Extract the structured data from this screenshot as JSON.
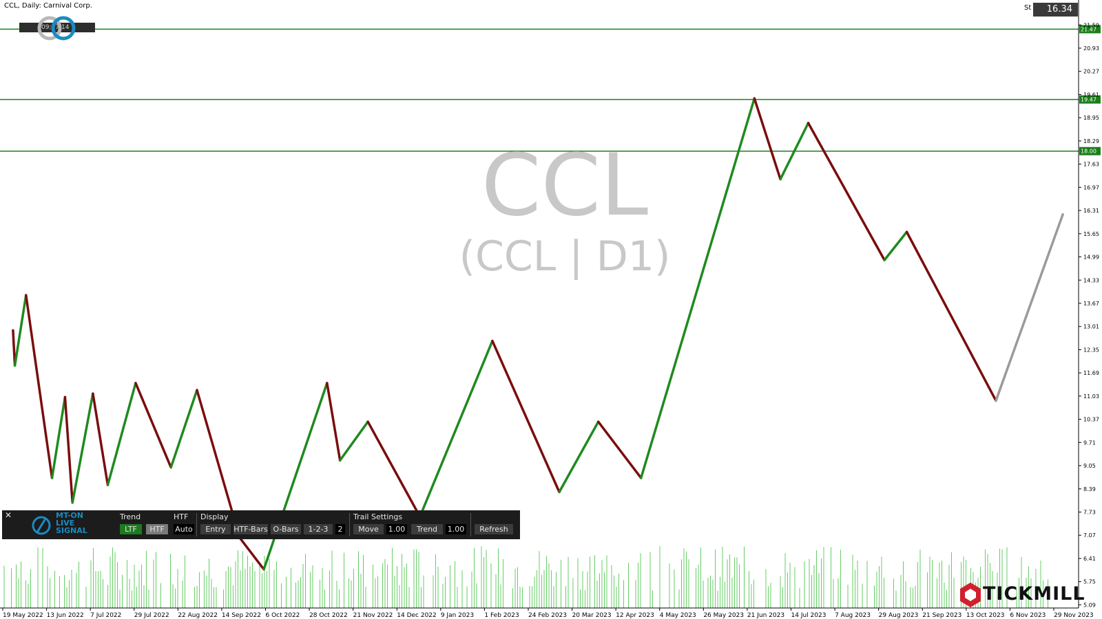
{
  "header": {
    "symbol_line": "CCL, Daily:  Carnival Corp."
  },
  "price_box": {
    "label": "St",
    "value": "16.34"
  },
  "timer": {
    "value": "09:17:14"
  },
  "watermark": {
    "ticker": "CCL",
    "sub": "(CCL | D1)"
  },
  "brand": {
    "name": "TICKMILL",
    "accent": "#d0202e"
  },
  "colors": {
    "up_leg": "#1f8a1f",
    "down_leg": "#7a0d0d",
    "current_leg": "#9a9a9a",
    "level": "#1a7f1a",
    "volume": "#66cc66"
  },
  "panel": {
    "logo": [
      "MT-ON",
      "LIVE",
      "SIGNAL"
    ],
    "close": "✕",
    "trend": {
      "title": "Trend",
      "ltf": "LTF",
      "htf": "HTF"
    },
    "htf": {
      "title": "HTF",
      "auto": "Auto"
    },
    "display": {
      "title": "Display",
      "entry": "Entry",
      "htf_bars": "HTF-Bars",
      "o_bars": "O-Bars",
      "one_two_three": "1-2-3",
      "count": "2"
    },
    "trail": {
      "title": "Trail Settings",
      "move": "Move",
      "move_val": "1.00",
      "trend": "Trend",
      "trend_val": "1.00"
    },
    "refresh": "Refresh"
  },
  "chart_data": {
    "type": "line",
    "ylim": [
      5.0,
      22.3
    ],
    "y_ticks": [
      "21.59",
      "20.93",
      "20.27",
      "19.61",
      "18.95",
      "18.29",
      "17.63",
      "16.97",
      "16.31",
      "15.65",
      "14.99",
      "14.33",
      "13.67",
      "13.01",
      "12.35",
      "11.69",
      "11.03",
      "10.37",
      "9.71",
      "9.05",
      "8.39",
      "7.73",
      "7.07",
      "6.41",
      "5.75",
      "5.09"
    ],
    "x_ticks": [
      "19 May 2022",
      "13 Jun 2022",
      "7 Jul 2022",
      "29 Jul 2022",
      "22 Aug 2022",
      "14 Sep 2022",
      "6 Oct 2022",
      "28 Oct 2022",
      "21 Nov 2022",
      "14 Dec 2022",
      "9 Jan 2023",
      "1 Feb 2023",
      "24 Feb 2023",
      "20 Mar 2023",
      "12 Apr 2023",
      "4 May 2023",
      "26 May 2023",
      "21 Jun 2023",
      "14 Jul 2023",
      "7 Aug 2023",
      "29 Aug 2023",
      "21 Sep 2023",
      "13 Oct 2023",
      "6 Nov 2023",
      "29 Nov 2023"
    ],
    "levels": [
      {
        "value": 21.47,
        "label": "21.47"
      },
      {
        "value": 19.47,
        "label": "19.47"
      },
      {
        "value": 18.0,
        "label": "18.00"
      }
    ],
    "zigzag": [
      {
        "date": "2022-05-19",
        "price": 12.9
      },
      {
        "date": "2022-05-20",
        "price": 11.9
      },
      {
        "date": "2022-05-26",
        "price": 13.9
      },
      {
        "date": "2022-06-09",
        "price": 8.7
      },
      {
        "date": "2022-06-16",
        "price": 11.0
      },
      {
        "date": "2022-06-20",
        "price": 8.0
      },
      {
        "date": "2022-07-01",
        "price": 11.1
      },
      {
        "date": "2022-07-09",
        "price": 8.5
      },
      {
        "date": "2022-07-24",
        "price": 11.4
      },
      {
        "date": "2022-08-12",
        "price": 9.0
      },
      {
        "date": "2022-08-26",
        "price": 11.2
      },
      {
        "date": "2022-09-18",
        "price": 7.0
      },
      {
        "date": "2022-10-01",
        "price": 6.1
      },
      {
        "date": "2022-11-04",
        "price": 11.4
      },
      {
        "date": "2022-11-11",
        "price": 9.2
      },
      {
        "date": "2022-11-26",
        "price": 10.3
      },
      {
        "date": "2022-12-24",
        "price": 7.6
      },
      {
        "date": "2023-02-01",
        "price": 12.6
      },
      {
        "date": "2023-03-09",
        "price": 8.3
      },
      {
        "date": "2023-03-30",
        "price": 10.3
      },
      {
        "date": "2023-04-22",
        "price": 8.7
      },
      {
        "date": "2023-06-22",
        "price": 19.5
      },
      {
        "date": "2023-07-06",
        "price": 17.2
      },
      {
        "date": "2023-07-21",
        "price": 18.8
      },
      {
        "date": "2023-08-31",
        "price": 14.9
      },
      {
        "date": "2023-09-12",
        "price": 15.7
      },
      {
        "date": "2023-10-30",
        "price": 10.9
      },
      {
        "date": "2023-12-05",
        "price": 16.2
      }
    ]
  }
}
